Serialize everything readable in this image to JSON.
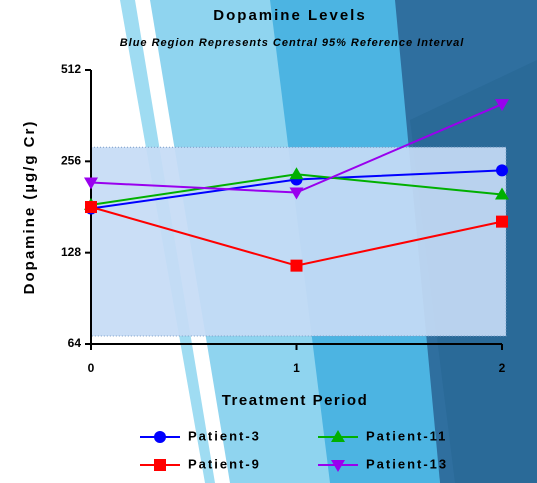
{
  "chart_data": {
    "type": "line",
    "title": "Dopamine Levels",
    "subtitle": "Blue Region Represents Central 95% Reference Interval",
    "x_label": "Treatment Period",
    "y_label": "Dopamine (µg/g Cr)",
    "x": [
      0,
      1,
      2
    ],
    "xlim": [
      0,
      2
    ],
    "xticks": [
      0,
      1,
      2
    ],
    "ylim": [
      64,
      512
    ],
    "yticks": [
      64,
      128,
      256,
      512
    ],
    "log_base": 2,
    "reference_band": [
      68,
      285
    ],
    "reference_color": "#c6dbf5",
    "series": [
      {
        "name": "Patient-3",
        "color": "#0000ff",
        "marker": "circle",
        "values": [
          179,
          223,
          239
        ]
      },
      {
        "name": "Patient-11",
        "color": "#00b000",
        "marker": "triangle",
        "values": [
          184,
          232,
          199
        ]
      },
      {
        "name": "Patient-9",
        "color": "#ff0000",
        "marker": "square",
        "values": [
          181,
          116,
          162
        ]
      },
      {
        "name": "Patient-13",
        "color": "#9900ee",
        "marker": "triangle-down",
        "values": [
          218,
          202,
          395
        ]
      }
    ]
  }
}
